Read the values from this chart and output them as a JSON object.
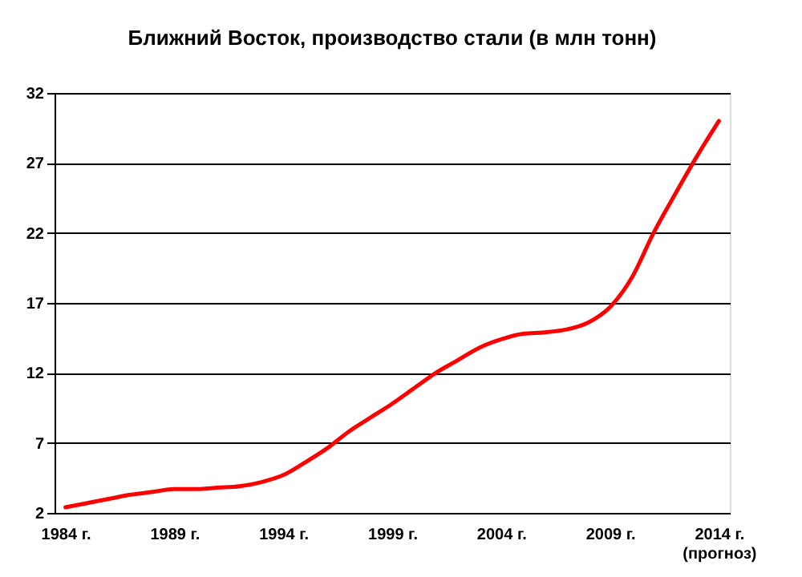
{
  "chart_data": {
    "type": "line",
    "title": "Ближний Восток, производство стали (в млн тонн)",
    "categories": [
      "1984 г.",
      null,
      null,
      null,
      null,
      "1989 г.",
      null,
      null,
      null,
      null,
      "1994 г.",
      null,
      null,
      null,
      null,
      "1999 г.",
      null,
      null,
      null,
      null,
      "2004 г.",
      null,
      null,
      null,
      null,
      "2009 г.",
      null,
      null,
      null,
      null,
      "2014 г.\n(прогноз)"
    ],
    "series": [
      {
        "color": "#ff0000",
        "values": [
          2.4,
          2.7,
          3.0,
          3.3,
          3.5,
          3.7,
          3.7,
          3.8,
          3.9,
          4.2,
          4.7,
          5.6,
          6.6,
          7.8,
          8.8,
          9.8,
          10.9,
          12.0,
          12.9,
          13.8,
          14.4,
          14.8,
          14.9,
          15.1,
          15.6,
          16.7,
          18.8,
          22.0,
          24.8,
          27.5,
          30.0
        ]
      }
    ],
    "ylim": [
      2,
      32
    ],
    "yticks": [
      2,
      7,
      12,
      17,
      22,
      27,
      32
    ],
    "grid": "y",
    "marker": "none",
    "line_style": "solid"
  }
}
